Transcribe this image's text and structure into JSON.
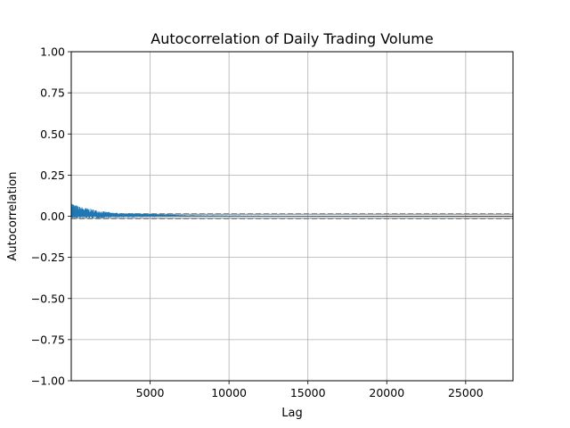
{
  "chart_data": {
    "type": "line",
    "title": "Autocorrelation of Daily Trading Volume",
    "xlabel": "Lag",
    "ylabel": "Autocorrelation",
    "xlim": [
      1,
      28000
    ],
    "ylim": [
      -1.0,
      1.0
    ],
    "x_ticks": [
      5000,
      10000,
      15000,
      20000,
      25000
    ],
    "y_ticks": [
      1.0,
      0.75,
      0.5,
      0.25,
      0.0,
      -0.25,
      -0.5,
      -0.75,
      -1.0
    ],
    "y_tick_labels": [
      "1.00",
      "0.75",
      "0.50",
      "0.25",
      "0.00",
      "−0.25",
      "−0.50",
      "−0.75",
      "−1.00"
    ],
    "grid": true,
    "series": [
      {
        "color": "#1f77b4",
        "x": [
          1,
          100,
          250,
          500,
          750,
          1000,
          1250,
          1500,
          1750,
          2000,
          2500,
          3000,
          4000,
          5000,
          6000,
          7000,
          8000,
          10000,
          12000,
          14000,
          16000,
          18000,
          20000,
          22000,
          24000,
          26000,
          28000
        ],
        "values": [
          0.09,
          0.08,
          0.07,
          0.06,
          0.055,
          0.05,
          0.045,
          0.04,
          0.035,
          0.03,
          0.025,
          0.02,
          0.018,
          0.015,
          0.012,
          0.008,
          0.006,
          0.005,
          0.004,
          0.003,
          0.002,
          0.002,
          0.001,
          0.001,
          0.001,
          0.0,
          0.0
        ]
      }
    ],
    "confidence_bands": {
      "solid": [
        0.0121,
        -0.0121
      ],
      "dashed": [
        0.0159,
        -0.0159
      ],
      "color": "#808080"
    },
    "zero_line": 0.0
  }
}
